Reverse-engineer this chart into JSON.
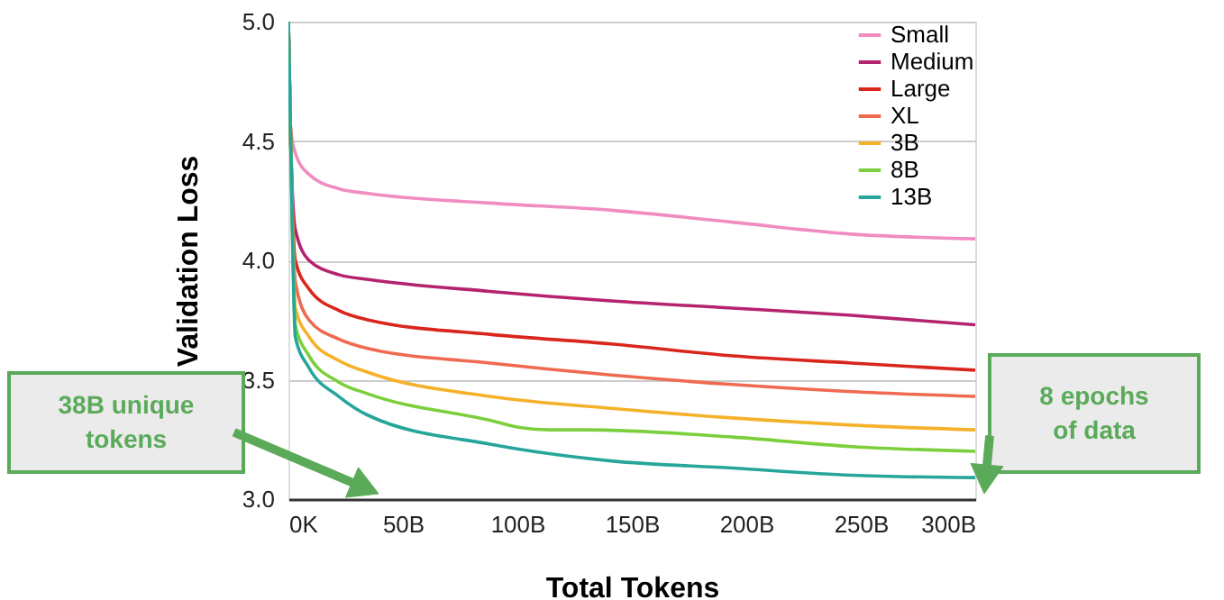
{
  "chart_data": {
    "type": "line",
    "xlabel": "Total Tokens",
    "ylabel": "Validation Loss",
    "xlim": [
      0,
      300
    ],
    "ylim": [
      3.0,
      5.0
    ],
    "xticks": [
      {
        "value": 0,
        "label": "0K"
      },
      {
        "value": 50,
        "label": "50B"
      },
      {
        "value": 100,
        "label": "100B"
      },
      {
        "value": 150,
        "label": "150B"
      },
      {
        "value": 200,
        "label": "200B"
      },
      {
        "value": 250,
        "label": "250B"
      },
      {
        "value": 300,
        "label": "300B"
      }
    ],
    "yticks": [
      {
        "value": 3.0,
        "label": "3.0"
      },
      3.5,
      {
        "value": 4.0,
        "label": "4.0"
      },
      4.5,
      {
        "value": 5.0,
        "label": "5.0"
      }
    ],
    "grid": "y",
    "legend": "top right",
    "marker": "none",
    "line_style": "solid",
    "x": [
      0,
      1,
      3,
      9,
      22,
      35,
      88,
      141,
      194,
      246,
      300
    ],
    "series": [
      {
        "name": "Small",
        "color": "#f08cc0",
        "values": [
          5.0,
          4.55,
          4.45,
          4.36,
          4.3,
          4.28,
          4.24,
          4.21,
          4.16,
          4.11,
          4.09
        ]
      },
      {
        "name": "Medium",
        "color": "#b5236e",
        "values": [
          5.0,
          4.5,
          4.13,
          4.0,
          3.94,
          3.92,
          3.87,
          3.83,
          3.8,
          3.77,
          3.73
        ]
      },
      {
        "name": "Large",
        "color": "#d9261c",
        "values": [
          5.0,
          4.5,
          4.0,
          3.88,
          3.79,
          3.75,
          3.69,
          3.65,
          3.6,
          3.57,
          3.54
        ]
      },
      {
        "name": "XL",
        "color": "#ef6a50",
        "values": [
          5.0,
          4.5,
          3.91,
          3.75,
          3.67,
          3.63,
          3.57,
          3.52,
          3.48,
          3.45,
          3.43
        ]
      },
      {
        "name": "3B",
        "color": "#f5b12a",
        "values": [
          5.0,
          4.5,
          3.8,
          3.68,
          3.58,
          3.53,
          3.43,
          3.38,
          3.34,
          3.31,
          3.29
        ]
      },
      {
        "name": "8B",
        "color": "#7ccf3c",
        "x": [
          0,
          1,
          3,
          9,
          22,
          35,
          88,
          101,
          114,
          130,
          194,
          246,
          300
        ],
        "values": [
          5.0,
          4.5,
          3.73,
          3.6,
          3.49,
          3.44,
          3.33,
          3.3,
          3.29,
          3.29,
          3.26,
          3.22,
          3.2
        ]
      },
      {
        "name": "13B",
        "color": "#26a69a",
        "values": [
          5.0,
          4.5,
          3.68,
          3.55,
          3.43,
          3.35,
          3.23,
          3.16,
          3.13,
          3.1,
          3.09
        ]
      }
    ],
    "annotations": [
      "38B unique tokens",
      "8 epochs of data"
    ]
  }
}
